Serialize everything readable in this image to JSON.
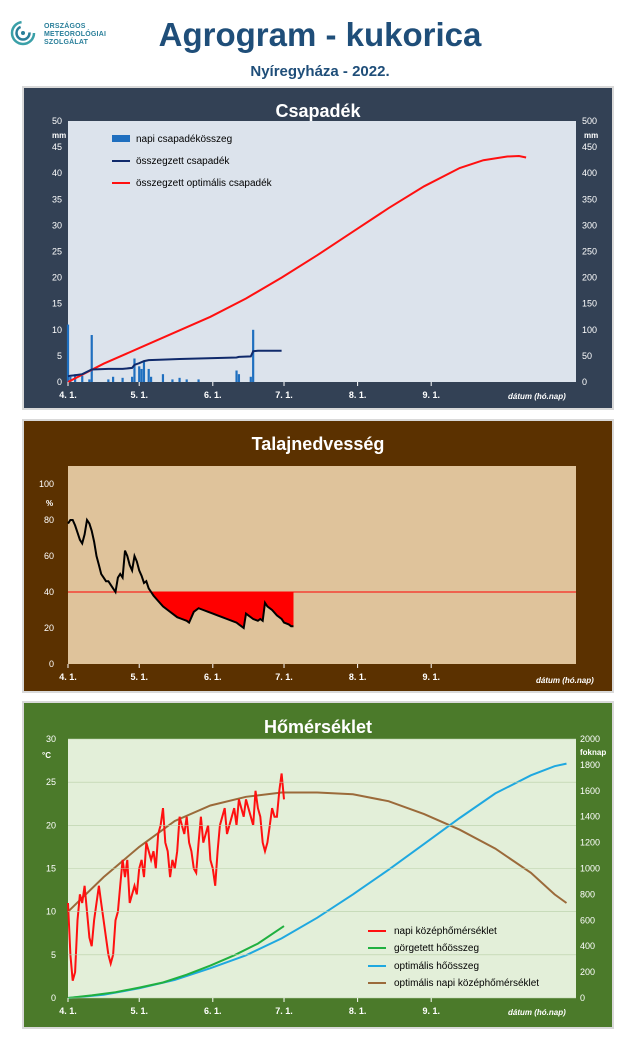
{
  "header": {
    "logo_lines": [
      "ORSZÁGOS",
      "METEOROLÓGIAI",
      "SZOLGÁLAT"
    ],
    "title": "Agrogram - kukorica",
    "subtitle": "Nyíregyháza - 2022."
  },
  "x_axis": {
    "ticks": [
      "4. 1.",
      "5. 1.",
      "6. 1.",
      "7. 1.",
      "8. 1.",
      "9. 1."
    ],
    "label": "dátum (hó.nap)"
  },
  "colors": {
    "precip_bg": "#334155",
    "soil_bg": "#5b3100",
    "temp_bg": "#4b7a2a",
    "plot_precip": "#dce3ec",
    "plot_soil": "#dfc39b",
    "plot_temp": "#e3efd9"
  },
  "chart_data": [
    {
      "type": "bar",
      "title": "Csapadék",
      "left_unit": "mm",
      "right_unit": "mm",
      "ylim_left": [
        0,
        50
      ],
      "ylim_right": [
        0,
        500
      ],
      "yticks_left": [
        "0",
        "5",
        "10",
        "15",
        "20",
        "25",
        "30",
        "35",
        "40",
        "45",
        "50"
      ],
      "yticks_right": [
        "0",
        "50",
        "100",
        "150",
        "200",
        "250",
        "300",
        "350",
        "400",
        "450",
        "500"
      ],
      "legend": [
        "napi csapadékösszeg",
        "összegzett csapadék",
        "összegzett optimális  csapadék"
      ],
      "daily_bars": [
        {
          "day": 0,
          "value": 11.0
        },
        {
          "day": 1,
          "value": 1.0
        },
        {
          "day": 3,
          "value": 1.5
        },
        {
          "day": 6,
          "value": 1.2
        },
        {
          "day": 9,
          "value": 0.5
        },
        {
          "day": 10,
          "value": 9.0
        },
        {
          "day": 17,
          "value": 0.5
        },
        {
          "day": 19,
          "value": 1.0
        },
        {
          "day": 23,
          "value": 0.8
        },
        {
          "day": 27,
          "value": 1.0
        },
        {
          "day": 28,
          "value": 4.5
        },
        {
          "day": 30,
          "value": 3.0
        },
        {
          "day": 31,
          "value": 2.5
        },
        {
          "day": 32,
          "value": 4.0
        },
        {
          "day": 34,
          "value": 2.5
        },
        {
          "day": 35,
          "value": 1.0
        },
        {
          "day": 40,
          "value": 1.5
        },
        {
          "day": 44,
          "value": 0.5
        },
        {
          "day": 47,
          "value": 0.8
        },
        {
          "day": 50,
          "value": 0.5
        },
        {
          "day": 55,
          "value": 0.5
        },
        {
          "day": 71,
          "value": 2.2
        },
        {
          "day": 72,
          "value": 1.5
        },
        {
          "day": 77,
          "value": 1.0
        },
        {
          "day": 78,
          "value": 10.0
        }
      ],
      "cumulative": [
        [
          0,
          11
        ],
        [
          1,
          12
        ],
        [
          3,
          13
        ],
        [
          6,
          15
        ],
        [
          10,
          24
        ],
        [
          17,
          25
        ],
        [
          23,
          25
        ],
        [
          27,
          27
        ],
        [
          28,
          33
        ],
        [
          30,
          36
        ],
        [
          32,
          40
        ],
        [
          34,
          42
        ],
        [
          40,
          43
        ],
        [
          47,
          44
        ],
        [
          55,
          45
        ],
        [
          71,
          47
        ],
        [
          72,
          48
        ],
        [
          77,
          49
        ],
        [
          78,
          59
        ],
        [
          80,
          60
        ],
        [
          90,
          60
        ]
      ],
      "optimal_cumulative": [
        [
          0,
          0
        ],
        [
          15,
          35
        ],
        [
          30,
          65
        ],
        [
          45,
          95
        ],
        [
          60,
          125
        ],
        [
          75,
          160
        ],
        [
          90,
          200
        ],
        [
          105,
          243
        ],
        [
          120,
          288
        ],
        [
          135,
          333
        ],
        [
          150,
          375
        ],
        [
          165,
          410
        ],
        [
          175,
          425
        ],
        [
          185,
          432
        ],
        [
          190,
          433
        ],
        [
          193,
          430
        ]
      ]
    },
    {
      "type": "line",
      "title": "Talajnedvesség",
      "unit": "%",
      "ylim": [
        0,
        110
      ],
      "yticks": [
        "0",
        "20",
        "40",
        "60",
        "80",
        "100"
      ],
      "threshold": 40,
      "soil_moisture": [
        [
          0,
          78
        ],
        [
          1,
          80
        ],
        [
          2,
          80
        ],
        [
          3,
          77
        ],
        [
          4,
          73
        ],
        [
          5,
          69
        ],
        [
          6,
          67
        ],
        [
          7,
          72
        ],
        [
          8,
          80
        ],
        [
          9,
          78
        ],
        [
          10,
          74
        ],
        [
          11,
          68
        ],
        [
          12,
          60
        ],
        [
          13,
          55
        ],
        [
          14,
          50
        ],
        [
          15,
          48
        ],
        [
          16,
          46
        ],
        [
          17,
          46
        ],
        [
          18,
          44
        ],
        [
          19,
          42
        ],
        [
          20,
          40
        ],
        [
          21,
          48
        ],
        [
          22,
          50
        ],
        [
          23,
          48
        ],
        [
          24,
          63
        ],
        [
          25,
          60
        ],
        [
          26,
          55
        ],
        [
          27,
          52
        ],
        [
          28,
          60
        ],
        [
          29,
          57
        ],
        [
          30,
          52
        ],
        [
          31,
          49
        ],
        [
          32,
          45
        ],
        [
          33,
          46
        ],
        [
          34,
          42
        ],
        [
          35,
          40
        ],
        [
          36,
          38
        ],
        [
          38,
          35
        ],
        [
          40,
          32
        ],
        [
          42,
          30
        ],
        [
          44,
          28
        ],
        [
          46,
          26
        ],
        [
          48,
          25
        ],
        [
          50,
          24
        ],
        [
          51,
          23
        ],
        [
          53,
          29
        ],
        [
          55,
          31
        ],
        [
          57,
          30
        ],
        [
          59,
          29
        ],
        [
          61,
          28
        ],
        [
          63,
          27
        ],
        [
          65,
          26
        ],
        [
          67,
          25
        ],
        [
          69,
          24
        ],
        [
          71,
          23
        ],
        [
          72,
          22
        ],
        [
          73,
          21
        ],
        [
          74,
          20
        ],
        [
          75,
          28
        ],
        [
          76,
          27
        ],
        [
          78,
          25
        ],
        [
          80,
          24
        ],
        [
          81,
          25
        ],
        [
          82,
          24
        ],
        [
          83,
          34
        ],
        [
          84,
          32
        ],
        [
          86,
          30
        ],
        [
          88,
          27
        ],
        [
          90,
          25
        ],
        [
          91,
          23
        ],
        [
          93,
          22
        ],
        [
          94,
          21
        ],
        [
          95,
          21
        ]
      ]
    },
    {
      "type": "line",
      "title": "Hőmérséklet",
      "left_unit": "°C",
      "right_unit": "foknap",
      "ylim_left": [
        0,
        30
      ],
      "ylim_right": [
        0,
        2000
      ],
      "yticks_left": [
        "0",
        "5",
        "10",
        "15",
        "20",
        "25",
        "30"
      ],
      "yticks_right": [
        "0",
        "200",
        "400",
        "600",
        "800",
        "1000",
        "1200",
        "1400",
        "1600",
        "1800",
        "2000"
      ],
      "legend": [
        "napi középhőmérséklet",
        "görgetett hőösszeg",
        "optimális hőösszeg",
        "optimális napi középhőmérséklet"
      ],
      "daily_mean": [
        [
          0,
          11.0
        ],
        [
          1,
          5.0
        ],
        [
          2,
          2.0
        ],
        [
          3,
          3.0
        ],
        [
          4,
          9.0
        ],
        [
          5,
          12.0
        ],
        [
          6,
          11.0
        ],
        [
          7,
          13.0
        ],
        [
          8,
          10.0
        ],
        [
          9,
          7.0
        ],
        [
          10,
          6.0
        ],
        [
          11,
          9.0
        ],
        [
          12,
          11.0
        ],
        [
          13,
          13.0
        ],
        [
          14,
          11.0
        ],
        [
          15,
          9.0
        ],
        [
          16,
          7.0
        ],
        [
          17,
          5.0
        ],
        [
          18,
          4.0
        ],
        [
          19,
          5.0
        ],
        [
          20,
          9.0
        ],
        [
          21,
          10.0
        ],
        [
          22,
          13.0
        ],
        [
          23,
          16.0
        ],
        [
          24,
          14.0
        ],
        [
          25,
          16.0
        ],
        [
          26,
          11.0
        ],
        [
          27,
          12.0
        ],
        [
          28,
          13.0
        ],
        [
          29,
          12.0
        ],
        [
          30,
          15.0
        ],
        [
          31,
          16.0
        ],
        [
          32,
          14.0
        ],
        [
          33,
          18.0
        ],
        [
          34,
          17.0
        ],
        [
          35,
          16.0
        ],
        [
          36,
          17.0
        ],
        [
          37,
          15.0
        ],
        [
          38,
          19.0
        ],
        [
          39,
          20.0
        ],
        [
          40,
          22.0
        ],
        [
          41,
          18.0
        ],
        [
          42,
          17.0
        ],
        [
          43,
          14.0
        ],
        [
          44,
          16.0
        ],
        [
          45,
          15.0
        ],
        [
          46,
          17.0
        ],
        [
          47,
          21.0
        ],
        [
          48,
          20.0
        ],
        [
          49,
          19.0
        ],
        [
          50,
          21.0
        ],
        [
          51,
          18.0
        ],
        [
          52,
          17.0
        ],
        [
          53,
          15.0
        ],
        [
          54,
          14.5
        ],
        [
          55,
          18.0
        ],
        [
          56,
          21.0
        ],
        [
          57,
          18.0
        ],
        [
          58,
          19.0
        ],
        [
          59,
          20.0
        ],
        [
          60,
          16.0
        ],
        [
          61,
          15.0
        ],
        [
          62,
          13.0
        ],
        [
          63,
          17.0
        ],
        [
          64,
          20.0
        ],
        [
          65,
          21.0
        ],
        [
          66,
          22.0
        ],
        [
          67,
          19.0
        ],
        [
          68,
          20.0
        ],
        [
          69,
          21.0
        ],
        [
          70,
          22.0
        ],
        [
          71,
          20.0
        ],
        [
          72,
          23.0
        ],
        [
          73,
          22.0
        ],
        [
          74,
          21.0
        ],
        [
          75,
          23.0
        ],
        [
          76,
          22.0
        ],
        [
          77,
          21.0
        ],
        [
          78,
          20.0
        ],
        [
          79,
          24.0
        ],
        [
          80,
          22.0
        ],
        [
          81,
          21.0
        ],
        [
          82,
          18.0
        ],
        [
          83,
          17.0
        ],
        [
          84,
          18.0
        ],
        [
          85,
          20.0
        ],
        [
          86,
          22.0
        ],
        [
          87,
          21.0
        ],
        [
          88,
          21.0
        ],
        [
          89,
          24.0
        ],
        [
          90,
          26.0
        ],
        [
          91,
          23.0
        ]
      ],
      "cumulative_heat": [
        [
          0,
          0
        ],
        [
          10,
          20
        ],
        [
          20,
          45
        ],
        [
          30,
          80
        ],
        [
          40,
          120
        ],
        [
          50,
          180
        ],
        [
          60,
          250
        ],
        [
          70,
          330
        ],
        [
          80,
          420
        ],
        [
          91,
          555
        ]
      ],
      "optimal_heat": [
        [
          0,
          0
        ],
        [
          15,
          25
        ],
        [
          30,
          75
        ],
        [
          45,
          140
        ],
        [
          60,
          230
        ],
        [
          75,
          330
        ],
        [
          90,
          460
        ],
        [
          105,
          620
        ],
        [
          120,
          800
        ],
        [
          135,
          990
        ],
        [
          150,
          1190
        ],
        [
          165,
          1390
        ],
        [
          180,
          1580
        ],
        [
          195,
          1720
        ],
        [
          205,
          1790
        ],
        [
          210,
          1810
        ]
      ],
      "optimal_daily_mean": [
        [
          0,
          10
        ],
        [
          15,
          14
        ],
        [
          30,
          17.5
        ],
        [
          45,
          20.5
        ],
        [
          60,
          22.3
        ],
        [
          75,
          23.3
        ],
        [
          90,
          23.8
        ],
        [
          105,
          23.8
        ],
        [
          120,
          23.6
        ],
        [
          135,
          22.8
        ],
        [
          150,
          21.3
        ],
        [
          165,
          19.5
        ],
        [
          180,
          17.3
        ],
        [
          195,
          14.5
        ],
        [
          205,
          12.0
        ],
        [
          210,
          11.0
        ]
      ]
    }
  ]
}
